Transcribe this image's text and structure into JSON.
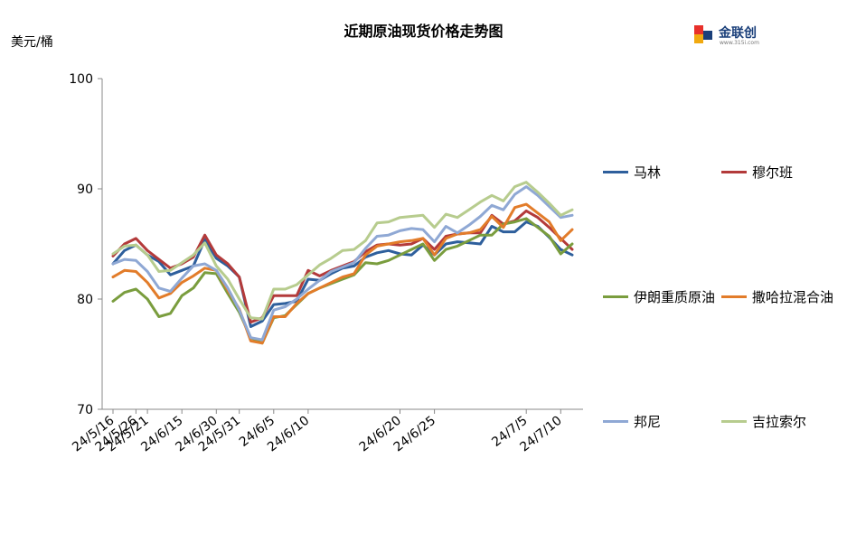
{
  "title": "近期原油现货价格走势图",
  "unit_label": "美元/桶",
  "logo": {
    "name": "金联创",
    "sub": "www.315i.com",
    "colors": [
      "#e8302a",
      "#1a3f7a",
      "#f1a90f"
    ]
  },
  "chart_data": {
    "type": "line",
    "title": "近期原油现货价格走势图",
    "ylabel": "美元/桶",
    "xlabel": "",
    "ylim": [
      70,
      100
    ],
    "yticks": [
      70,
      80,
      90,
      100
    ],
    "grid": false,
    "legend_position": "right",
    "x": [
      "24/5/16",
      "24/5/17",
      "24/5/20",
      "24/5/21",
      "24/5/22",
      "24/5/23",
      "24/5/24",
      "24/5/27",
      "24/5/28",
      "24/5/29",
      "24/5/30",
      "24/5/31",
      "24/6/3",
      "24/6/4",
      "24/6/5",
      "24/6/6",
      "24/6/7",
      "24/6/10",
      "24/6/11",
      "24/6/12",
      "24/6/13",
      "24/6/14",
      "24/6/17",
      "24/6/18",
      "24/6/19",
      "24/6/20",
      "24/6/21",
      "24/6/24",
      "24/6/25",
      "24/6/26",
      "24/6/27",
      "24/6/28",
      "24/7/1",
      "24/7/2",
      "24/7/3",
      "24/7/4",
      "24/7/5",
      "24/7/8",
      "24/7/9",
      "24/7/10",
      "24/7/11"
    ],
    "xtick_labels": [
      "24/5/16",
      "24/5/21",
      "24/5/26",
      "24/5/31",
      "24/6/5",
      "24/6/10",
      "24/6/15",
      "24/6/20",
      "24/6/25",
      "24/6/30",
      "24/7/5",
      "24/7/10"
    ],
    "series": [
      {
        "name": "马林",
        "color": "#2e5f9c",
        "values": [
          83.2,
          84.4,
          84.9,
          84.0,
          83.4,
          82.2,
          82.6,
          83.0,
          85.4,
          83.7,
          83.0,
          82.0,
          77.5,
          78.0,
          79.5,
          79.6,
          79.8,
          81.8,
          81.7,
          82.3,
          82.8,
          83.0,
          83.8,
          84.2,
          84.4,
          84.1,
          84.0,
          84.9,
          84.0,
          85.0,
          85.2,
          85.1,
          85.0,
          86.6,
          86.1,
          86.1,
          87.0,
          86.6,
          85.6,
          84.5,
          84.0
        ]
      },
      {
        "name": "穆尔班",
        "color": "#b33a3a",
        "values": [
          83.9,
          85.0,
          85.5,
          84.4,
          83.6,
          82.8,
          83.2,
          83.8,
          85.8,
          84.0,
          83.2,
          82.0,
          77.9,
          78.3,
          80.3,
          80.3,
          80.3,
          82.6,
          82.1,
          82.6,
          83.0,
          83.4,
          84.3,
          84.9,
          85.0,
          84.9,
          85.0,
          85.5,
          84.5,
          85.7,
          85.9,
          86.0,
          86.0,
          87.6,
          86.8,
          87.1,
          88.0,
          87.4,
          86.5,
          85.5,
          84.5
        ]
      },
      {
        "name": "伊朗重质原油",
        "color": "#7a9d3e",
        "values": [
          79.8,
          80.6,
          80.9,
          80.0,
          78.4,
          78.7,
          80.3,
          81.0,
          82.4,
          82.3,
          80.5,
          78.8,
          76.5,
          76.0,
          78.3,
          78.5,
          79.5,
          80.5,
          81.0,
          81.4,
          81.8,
          82.2,
          83.3,
          83.2,
          83.5,
          84.0,
          84.5,
          85.0,
          83.5,
          84.5,
          84.8,
          85.3,
          85.8,
          85.8,
          86.8,
          87.0,
          87.3,
          86.5,
          85.7,
          84.1,
          85.0
        ]
      },
      {
        "name": "撒哈拉混合油",
        "color": "#e27c2a",
        "values": [
          82.0,
          82.6,
          82.5,
          81.5,
          80.1,
          80.5,
          81.5,
          82.1,
          82.8,
          82.6,
          80.8,
          79.1,
          76.2,
          76.0,
          78.4,
          78.4,
          79.6,
          80.5,
          81.0,
          81.5,
          82.0,
          82.3,
          84.0,
          84.8,
          85.0,
          85.2,
          85.3,
          85.5,
          84.0,
          85.5,
          85.9,
          86.0,
          86.3,
          87.5,
          86.5,
          88.3,
          88.6,
          87.8,
          87.0,
          85.3,
          86.3
        ]
      },
      {
        "name": "邦尼",
        "color": "#8fa8d4",
        "values": [
          83.2,
          83.6,
          83.5,
          82.5,
          81.0,
          80.7,
          81.9,
          83.0,
          83.2,
          82.6,
          81.0,
          79.0,
          76.5,
          76.3,
          79.0,
          79.3,
          80.0,
          80.9,
          81.7,
          82.5,
          82.9,
          83.3,
          84.6,
          85.7,
          85.8,
          86.2,
          86.4,
          86.3,
          85.2,
          86.6,
          86.0,
          86.7,
          87.5,
          88.5,
          88.1,
          89.5,
          90.2,
          89.4,
          88.4,
          87.4,
          87.6
        ]
      },
      {
        "name": "吉拉索尔",
        "color": "#b7cc8e",
        "values": [
          84.1,
          84.8,
          84.9,
          84.0,
          82.5,
          82.6,
          83.3,
          84.0,
          85.1,
          83.0,
          81.8,
          80.0,
          78.3,
          78.2,
          80.9,
          80.9,
          81.3,
          82.2,
          83.1,
          83.7,
          84.4,
          84.5,
          85.3,
          86.9,
          87.0,
          87.4,
          87.5,
          87.6,
          86.5,
          87.7,
          87.4,
          88.1,
          88.8,
          89.4,
          88.9,
          90.2,
          90.6,
          89.7,
          88.7,
          87.6,
          88.1
        ]
      }
    ]
  }
}
